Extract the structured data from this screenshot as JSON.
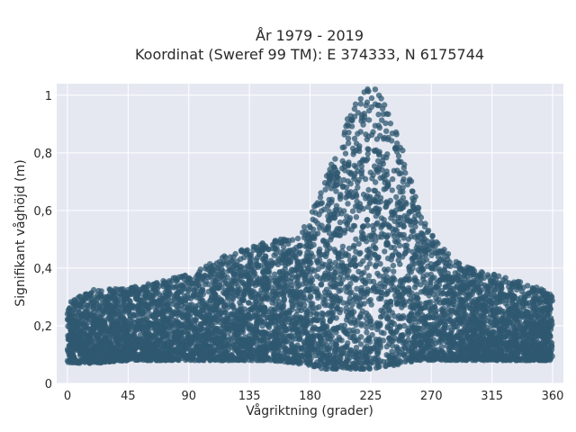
{
  "chart_data": {
    "type": "scatter",
    "title_line1": "År 1979 - 2019",
    "title_line2": "Koordinat (Sweref 99 TM): E 374333, N 6175744",
    "xlabel": "Vågriktning (grader)",
    "ylabel": "Signifikant våghöjd (m)",
    "xlim": [
      -8,
      368
    ],
    "ylim": [
      0,
      1.04
    ],
    "xticks": [
      0,
      45,
      90,
      135,
      180,
      225,
      270,
      315,
      360
    ],
    "xtick_labels": [
      "0",
      "45",
      "90",
      "135",
      "180",
      "225",
      "270",
      "315",
      "360"
    ],
    "yticks": [
      0,
      0.2,
      0.4,
      0.6,
      0.8,
      1.0
    ],
    "ytick_labels": [
      "0",
      "0,2",
      "0,4",
      "0,6",
      "0,8",
      "1"
    ],
    "grid": true,
    "marker_color": "#2f5870",
    "background_color": "#e5e8f1",
    "envelope": {
      "direction": [
        0,
        20,
        45,
        90,
        120,
        150,
        170,
        180,
        190,
        200,
        210,
        220,
        225,
        230,
        240,
        250,
        260,
        270,
        285,
        300,
        315,
        330,
        345,
        360
      ],
      "lower": [
        0.07,
        0.07,
        0.08,
        0.08,
        0.08,
        0.08,
        0.07,
        0.06,
        0.05,
        0.05,
        0.05,
        0.05,
        0.05,
        0.05,
        0.06,
        0.07,
        0.08,
        0.08,
        0.08,
        0.08,
        0.08,
        0.08,
        0.08,
        0.08
      ],
      "upper": [
        0.28,
        0.33,
        0.33,
        0.38,
        0.45,
        0.5,
        0.5,
        0.58,
        0.7,
        0.82,
        0.95,
        1.03,
        1.05,
        1.02,
        0.92,
        0.8,
        0.62,
        0.52,
        0.44,
        0.4,
        0.38,
        0.36,
        0.34,
        0.31
      ]
    }
  }
}
